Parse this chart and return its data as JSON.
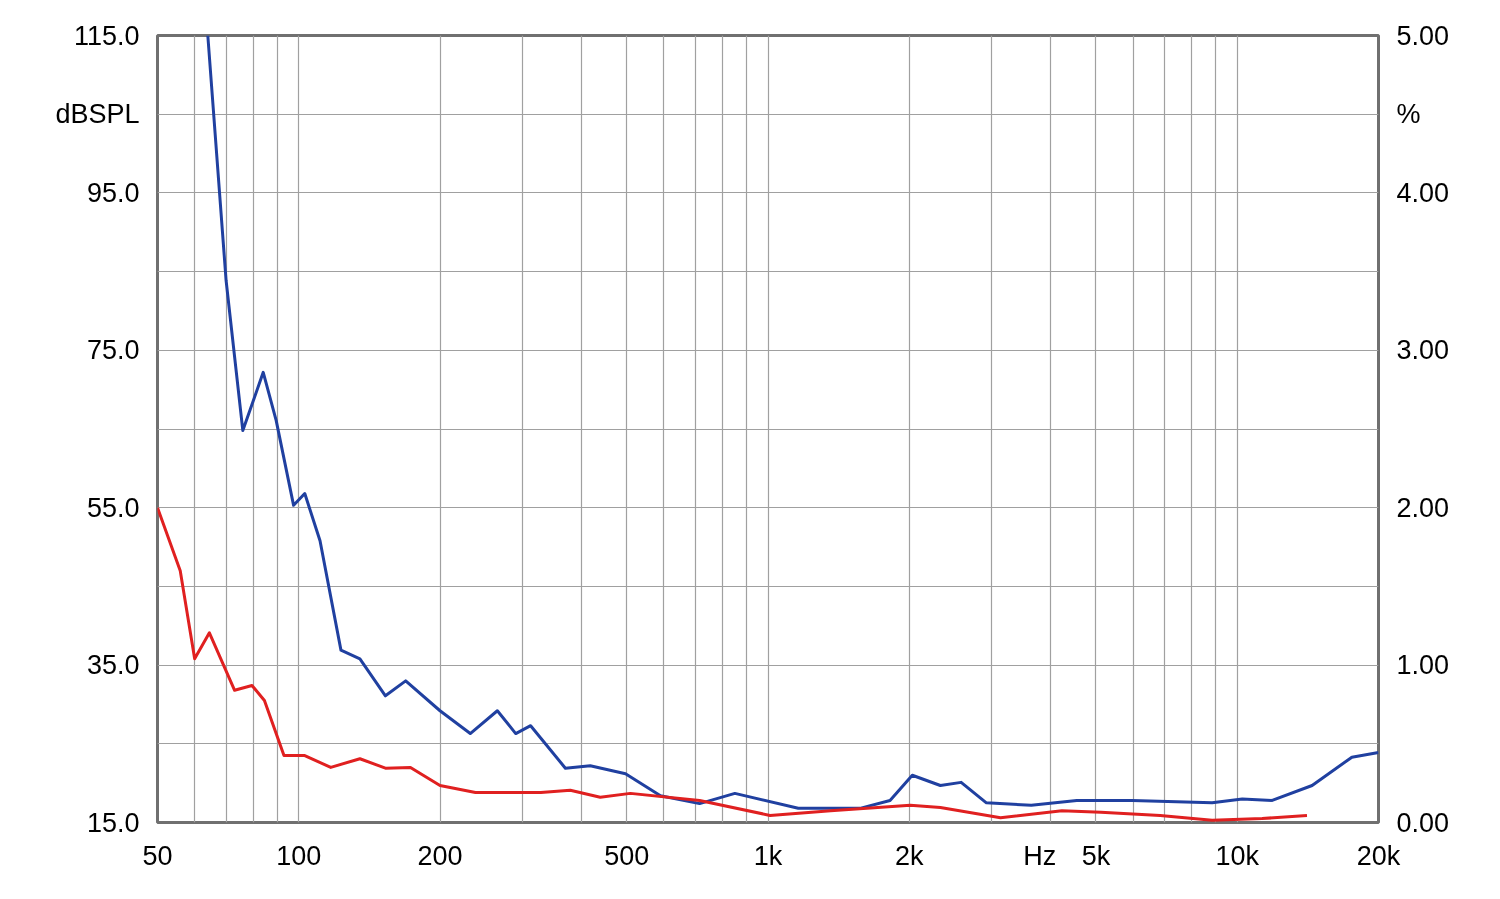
{
  "chart_data": {
    "type": "line",
    "xlabel": "Hz",
    "ylabel": "dBSPL",
    "y2label": "%",
    "log": "x",
    "grid": true,
    "xlim": [
      50,
      20000
    ],
    "xticks": [
      50,
      {
        "value": 60,
        "label": null
      },
      {
        "value": 70,
        "label": null
      },
      {
        "value": 80,
        "label": null
      },
      {
        "value": 90,
        "label": null
      },
      100,
      200,
      {
        "value": 300,
        "label": null
      },
      {
        "value": 400,
        "label": null
      },
      500,
      {
        "value": 600,
        "label": null
      },
      {
        "value": 700,
        "label": null
      },
      {
        "value": 800,
        "label": null
      },
      {
        "value": 900,
        "label": null
      },
      {
        "value": 1000,
        "label": "1k"
      },
      {
        "value": 2000,
        "label": "2k"
      },
      {
        "value": 3000,
        "label": null
      },
      {
        "value": 4000,
        "label": null
      },
      {
        "value": 5000,
        "label": "5k"
      },
      {
        "value": 6000,
        "label": null
      },
      {
        "value": 7000,
        "label": null
      },
      {
        "value": 8000,
        "label": null
      },
      {
        "value": 9000,
        "label": null
      },
      {
        "value": 10000,
        "label": "10k"
      },
      {
        "value": 20000,
        "label": "20k"
      }
    ],
    "ylim": [
      15,
      115
    ],
    "yticks": [
      {
        "value": 15,
        "label": "15.0"
      },
      {
        "value": 25,
        "label": null
      },
      {
        "value": 35,
        "label": "35.0"
      },
      {
        "value": 45,
        "label": null
      },
      {
        "value": 55,
        "label": "55.0"
      },
      {
        "value": 65,
        "label": null
      },
      {
        "value": 75,
        "label": "75.0"
      },
      {
        "value": 85,
        "label": null
      },
      {
        "value": 95,
        "label": "95.0"
      },
      {
        "value": 105,
        "label": null
      },
      {
        "value": 115,
        "label": "115.0"
      }
    ],
    "y2lim": [
      0,
      5
    ],
    "y2ticks": [
      {
        "value": 0,
        "label": "0.00"
      },
      {
        "value": 1,
        "label": "1.00"
      },
      {
        "value": 2,
        "label": "2.00"
      },
      {
        "value": 3,
        "label": "3.00"
      },
      {
        "value": 4,
        "label": "4.00"
      },
      {
        "value": 5,
        "label": "5.00"
      }
    ],
    "series": [
      {
        "color": "#2040a0",
        "x": [
          64,
          70,
          76,
          84,
          89.5,
          97.5,
          103,
          111,
          123,
          135,
          153,
          169,
          200,
          232,
          265,
          290,
          312,
          370,
          418,
          497,
          590,
          715,
          850,
          1160,
          1570,
          1820,
          2030,
          2330,
          2580,
          2920,
          3640,
          4550,
          5970,
          8840,
          10250,
          11870,
          14440,
          17550,
          20000
        ],
        "values": [
          115,
          83.9,
          64.8,
          72.2,
          66.1,
          55.3,
          56.8,
          50.8,
          36.9,
          35.8,
          31.1,
          33,
          29.2,
          26.3,
          29.2,
          26.3,
          27.3,
          21.9,
          22.2,
          21.2,
          18.4,
          17.4,
          18.7,
          16.8,
          16.8,
          17.8,
          21,
          19.7,
          20.1,
          17.5,
          17.2,
          17.8,
          17.8,
          17.5,
          18,
          17.8,
          19.7,
          23.3,
          23.9
        ]
      },
      {
        "color": "#e02020",
        "x": [
          50,
          55.9,
          60,
          64.5,
          73,
          79.5,
          84.5,
          93,
          103,
          117,
          135,
          153,
          173,
          200,
          238,
          328,
          379,
          439,
          509,
          715,
          1010,
          1360,
          2010,
          2330,
          3130,
          4230,
          5120,
          6850,
          8840,
          11300,
          14080
        ],
        "values": [
          55,
          47,
          35.8,
          39.1,
          31.8,
          32.4,
          30.5,
          23.5,
          23.5,
          22,
          23.1,
          21.9,
          22,
          19.7,
          18.8,
          18.8,
          19.1,
          18.2,
          18.7,
          17.8,
          15.9,
          16.5,
          17.2,
          16.9,
          15.6,
          16.5,
          16.3,
          15.9,
          15.3,
          15.5,
          15.9
        ]
      }
    ]
  }
}
